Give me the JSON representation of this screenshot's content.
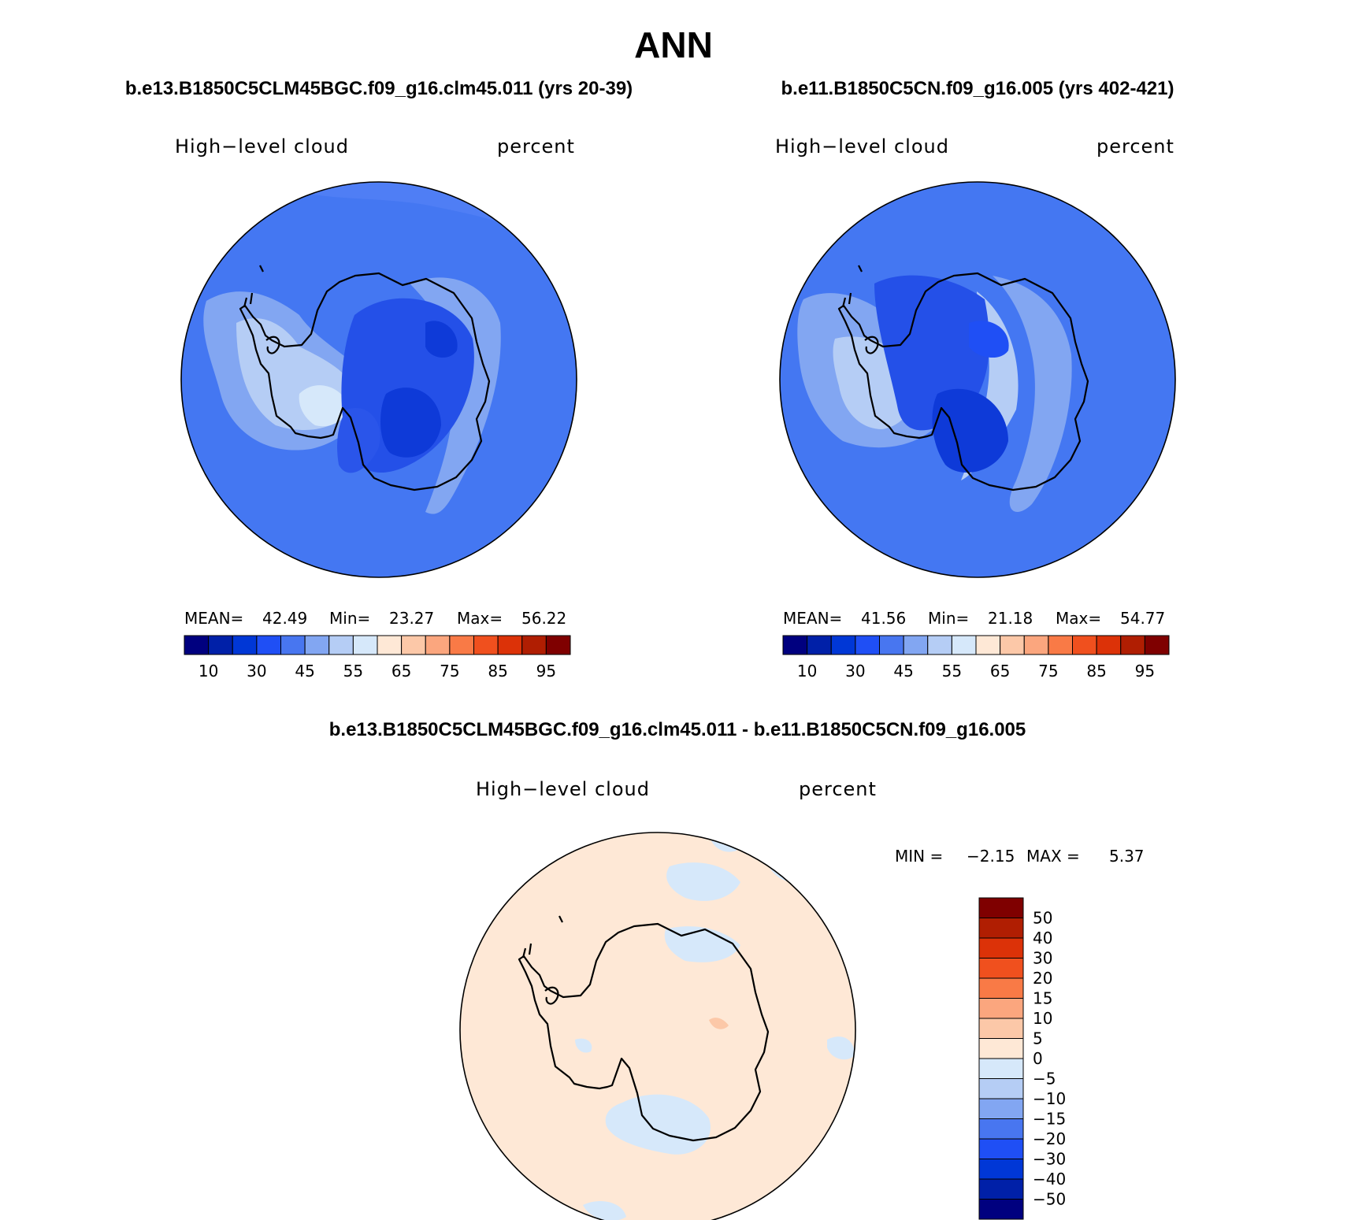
{
  "figure": {
    "title": "ANN"
  },
  "panels": [
    {
      "case_title": "b.e13.B1850C5CLM45BGC.f09_g16.clm45.011 (yrs 20-39)",
      "variable": "High−level cloud",
      "units": "percent",
      "stats": {
        "mean_label": "MEAN=",
        "mean": "42.49",
        "min_label": "Min=",
        "min": "23.27",
        "max_label": "Max=",
        "max": "56.22"
      }
    },
    {
      "case_title": "b.e11.B1850C5CN.f09_g16.005 (yrs 402-421)",
      "variable": "High−level cloud",
      "units": "percent",
      "stats": {
        "mean_label": "MEAN=",
        "mean": "41.56",
        "min_label": "Min=",
        "min": "21.18",
        "max_label": "Max=",
        "max": "54.77"
      }
    },
    {
      "case_title": "b.e13.B1850C5CLM45BGC.f09_g16.clm45.011 - b.e11.B1850C5CN.f09_g16.005",
      "variable": "High−level cloud",
      "units": "percent",
      "stats": {
        "min_label": "MIN =",
        "min": "−2.15",
        "max_label": "MAX =",
        "max": "5.37"
      }
    }
  ],
  "colorbar_abs": {
    "tick_labels": [
      "10",
      "30",
      "45",
      "55",
      "65",
      "75",
      "85",
      "95"
    ],
    "colors": [
      "#00007f",
      "#0020a8",
      "#0037d6",
      "#1f4ff5",
      "#4876f0",
      "#82a6f2",
      "#b5cdf5",
      "#d6e8fa",
      "#fee8d6",
      "#fcc8a8",
      "#fba67e",
      "#f97a46",
      "#f0501e",
      "#dc3208",
      "#b01e02",
      "#7f0000"
    ]
  },
  "colorbar_diff": {
    "tick_labels": [
      "50",
      "40",
      "30",
      "20",
      "15",
      "10",
      "5",
      "0",
      "−5",
      "−10",
      "−15",
      "−20",
      "−30",
      "−40",
      "−50"
    ],
    "colors": [
      "#7f0000",
      "#b01e02",
      "#dc3208",
      "#f0501e",
      "#f97a46",
      "#fba67e",
      "#fcc8a8",
      "#fee8d6",
      "#d6e8fa",
      "#b5cdf5",
      "#82a6f2",
      "#4876f0",
      "#1f4ff5",
      "#0037d6",
      "#0020a8",
      "#00007f"
    ]
  }
}
